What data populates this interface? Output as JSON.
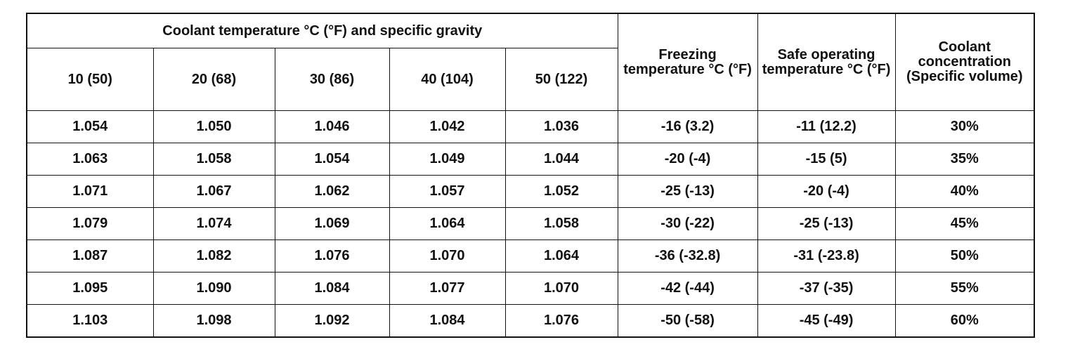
{
  "table": {
    "group_header": "Coolant temperature °C (°F) and specific gravity",
    "columns": [
      "10 (50)",
      "20 (68)",
      "30 (86)",
      "40 (104)",
      "50 (122)"
    ],
    "side_headers": [
      "Freezing temperature °C (°F)",
      "Safe operating temperature °C (°F)",
      "Coolant concentration (Specific volume)"
    ],
    "rows": [
      [
        "1.054",
        "1.050",
        "1.046",
        "1.042",
        "1.036",
        "-16 (3.2)",
        "-11 (12.2)",
        "30%"
      ],
      [
        "1.063",
        "1.058",
        "1.054",
        "1.049",
        "1.044",
        "-20 (-4)",
        "-15 (5)",
        "35%"
      ],
      [
        "1.071",
        "1.067",
        "1.062",
        "1.057",
        "1.052",
        "-25 (-13)",
        "-20 (-4)",
        "40%"
      ],
      [
        "1.079",
        "1.074",
        "1.069",
        "1.064",
        "1.058",
        "-30 (-22)",
        "-25 (-13)",
        "45%"
      ],
      [
        "1.087",
        "1.082",
        "1.076",
        "1.070",
        "1.064",
        "-36 (-32.8)",
        "-31 (-23.8)",
        "50%"
      ],
      [
        "1.095",
        "1.090",
        "1.084",
        "1.077",
        "1.070",
        "-42 (-44)",
        "-37 (-35)",
        "55%"
      ],
      [
        "1.103",
        "1.098",
        "1.092",
        "1.084",
        "1.076",
        "-50 (-58)",
        "-45 (-49)",
        "60%"
      ]
    ]
  }
}
